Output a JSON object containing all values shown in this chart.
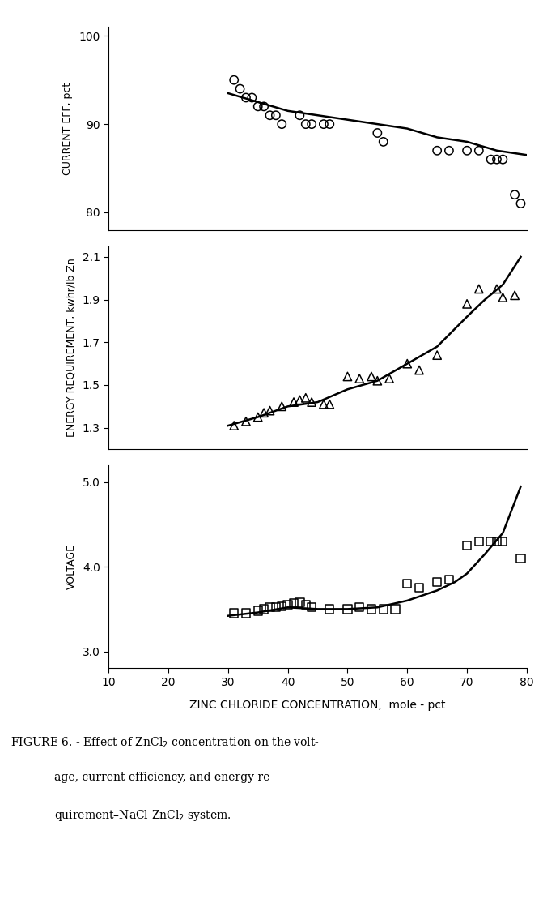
{
  "xlabel": "ZINC CHLORIDE CONCENTRATION,  mole - pct",
  "xlim": [
    10,
    80
  ],
  "xticks": [
    10,
    20,
    30,
    40,
    50,
    60,
    70,
    80
  ],
  "current_eff": {
    "ylabel": "CURRENT EFF, pct",
    "ylim": [
      78,
      101
    ],
    "yticks": [
      80,
      90,
      100
    ],
    "scatter_x": [
      31,
      32,
      33,
      34,
      35,
      36,
      37,
      38,
      39,
      42,
      43,
      44,
      46,
      47,
      55,
      56,
      65,
      67,
      70,
      72,
      74,
      75,
      76,
      78,
      79
    ],
    "scatter_y": [
      95,
      94,
      93,
      93,
      92,
      92,
      91,
      91,
      90,
      91,
      90,
      90,
      90,
      90,
      89,
      88,
      87,
      87,
      87,
      87,
      86,
      86,
      86,
      82,
      81
    ],
    "curve_x": [
      30,
      35,
      40,
      45,
      50,
      55,
      60,
      65,
      70,
      75,
      80
    ],
    "curve_y": [
      93.5,
      92.5,
      91.5,
      91.0,
      90.5,
      90.0,
      89.5,
      88.5,
      88.0,
      87.0,
      86.5
    ]
  },
  "energy_req": {
    "ylabel": "ENERGY REQUIREMENT, kwhr/lb Zn",
    "ylim": [
      1.2,
      2.15
    ],
    "yticks": [
      1.3,
      1.5,
      1.7,
      1.9,
      2.1
    ],
    "scatter_x": [
      31,
      33,
      35,
      36,
      37,
      39,
      41,
      42,
      43,
      44,
      46,
      47,
      50,
      52,
      54,
      55,
      57,
      60,
      62,
      65,
      70,
      72,
      75,
      76,
      78
    ],
    "scatter_y": [
      1.31,
      1.33,
      1.35,
      1.37,
      1.38,
      1.4,
      1.42,
      1.43,
      1.44,
      1.42,
      1.41,
      1.41,
      1.54,
      1.53,
      1.54,
      1.52,
      1.53,
      1.6,
      1.57,
      1.64,
      1.88,
      1.95,
      1.95,
      1.91,
      1.92
    ],
    "curve_x": [
      30,
      35,
      40,
      45,
      50,
      55,
      60,
      65,
      70,
      73,
      76,
      79
    ],
    "curve_y": [
      1.31,
      1.35,
      1.4,
      1.42,
      1.48,
      1.52,
      1.6,
      1.68,
      1.82,
      1.9,
      1.97,
      2.1
    ]
  },
  "voltage": {
    "ylabel": "VOLTAGE",
    "ylim": [
      2.8,
      5.2
    ],
    "yticks": [
      3.0,
      4.0,
      5.0
    ],
    "scatter_x": [
      31,
      33,
      35,
      36,
      37,
      38,
      39,
      40,
      41,
      42,
      43,
      44,
      47,
      50,
      52,
      54,
      56,
      58,
      60,
      62,
      65,
      67,
      70,
      72,
      74,
      75,
      76,
      79
    ],
    "scatter_y": [
      3.45,
      3.45,
      3.48,
      3.5,
      3.52,
      3.52,
      3.53,
      3.55,
      3.57,
      3.58,
      3.55,
      3.52,
      3.5,
      3.5,
      3.52,
      3.5,
      3.5,
      3.5,
      3.8,
      3.75,
      3.82,
      3.85,
      4.25,
      4.3,
      4.3,
      4.3,
      4.3,
      4.1
    ],
    "curve_x": [
      30,
      35,
      40,
      45,
      50,
      55,
      60,
      65,
      68,
      70,
      73,
      76,
      79
    ],
    "curve_y": [
      3.42,
      3.46,
      3.52,
      3.5,
      3.5,
      3.52,
      3.6,
      3.72,
      3.82,
      3.92,
      4.15,
      4.4,
      4.95
    ]
  },
  "caption_line1": "FIGURE 6. - Effect of ZnCl$_2$ concentration on the volt-",
  "caption_line2": "age, current efficiency, and energy re-",
  "caption_line3": "quirement–NaCl-ZnCl$_2$ system.",
  "color": "#000000",
  "bg_color": "#ffffff"
}
